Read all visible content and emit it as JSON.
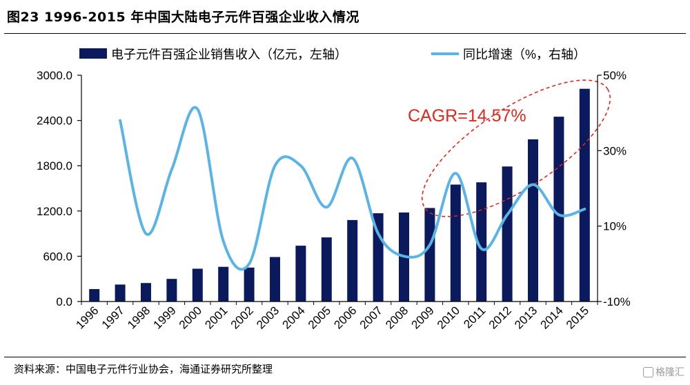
{
  "title": "图23 1996-2015 年中国大陆电子元件百强企业收入情况",
  "source": "资料来源：中国电子元件行业协会，海通证券研究所整理",
  "watermark": "格隆汇",
  "chart_data": {
    "type": "bar+line",
    "categories": [
      "1996",
      "1997",
      "1998",
      "1999",
      "2000",
      "2001",
      "2002",
      "2003",
      "2004",
      "2005",
      "2006",
      "2007",
      "2008",
      "2009",
      "2010",
      "2011",
      "2012",
      "2013",
      "2014",
      "2015"
    ],
    "series": [
      {
        "name": "电子元件百强企业销售收入（亿元，左轴）",
        "type": "bar",
        "axis": "left",
        "color": "#0b1a5c",
        "values": [
          165,
          225,
          245,
          300,
          435,
          460,
          450,
          590,
          740,
          850,
          1080,
          1170,
          1180,
          1240,
          1550,
          1580,
          1790,
          2150,
          2450,
          2820
        ]
      },
      {
        "name": "同比增速（%，右轴）",
        "type": "line",
        "axis": "right",
        "color": "#5ab4e6",
        "values": [
          null,
          38,
          8,
          25,
          41,
          6,
          0,
          26,
          26,
          15,
          28,
          8,
          2,
          5,
          24,
          4,
          13,
          21,
          13,
          14.5
        ]
      }
    ],
    "left_axis": {
      "min": 0,
      "max": 3000,
      "ticks": [
        "0.0",
        "600.0",
        "1200.0",
        "1800.0",
        "2400.0",
        "3000.0"
      ],
      "tick_values": [
        0,
        600,
        1200,
        1800,
        2400,
        3000
      ]
    },
    "right_axis": {
      "min": -10,
      "max": 50,
      "ticks": [
        "-10%",
        "10%",
        "30%",
        "50%"
      ],
      "tick_values": [
        -10,
        10,
        30,
        50
      ]
    },
    "annotation": {
      "text": "CAGR=14.57%",
      "color": "#e0281e"
    },
    "grid": false,
    "legend_position": "top"
  }
}
